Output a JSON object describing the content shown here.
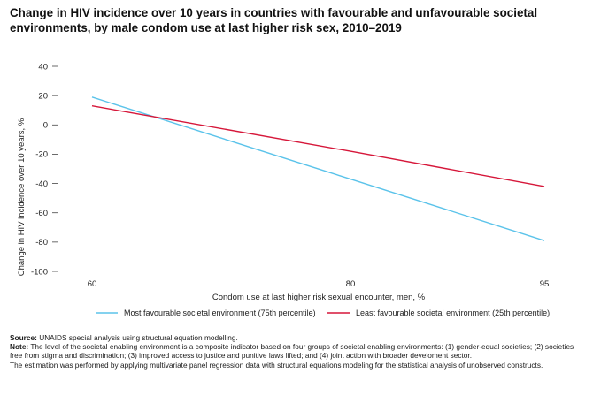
{
  "chart_data": {
    "type": "line",
    "title": "Change in HIV incidence over 10 years in countries with favourable and unfavourable societal environments, by male condom use at last higher risk sex, 2010–2019",
    "xlabel": "Condom use at last higher risk sexual encounter, men, %",
    "ylabel": "Change in HIV incidence over 10 years, %",
    "x": [
      60,
      80,
      95
    ],
    "xticks": [
      "60",
      "80",
      "95"
    ],
    "ylim": [
      -100,
      40
    ],
    "yticks": [
      40,
      20,
      0,
      -20,
      -40,
      -60,
      -80,
      -100
    ],
    "ytick_labels": [
      "40",
      "20",
      "0",
      "-20",
      "-40",
      "-60",
      "-80",
      "-100"
    ],
    "grid": false,
    "legend_position": "bottom",
    "series": [
      {
        "name": "Most favourable societal environment (75th percentile)",
        "color": "#5bc3ea",
        "values": [
          19,
          -37,
          -79
        ]
      },
      {
        "name": "Least favourable societal environment (25th percentile)",
        "color": "#d6173a",
        "values": [
          13,
          -18,
          -42
        ]
      }
    ]
  },
  "footer": {
    "source_label": "Source:",
    "source_text": " UNAIDS special analysis using structural equation modelling.",
    "note_label": "Note:",
    "note_text": " The level of the societal enabling environment is a composite indicator based on four groups of societal enabling environments: (1) gender-equal societies; (2) societies free from stigma and discrimination; (3) improved access to justice and punitive laws lifted; and (4) joint action with broader develoment sector.",
    "estimation_text": "The estimation was performed by applying multivariate panel regression data with structural equations modeling for the statistical analysis of unobserved constructs."
  }
}
